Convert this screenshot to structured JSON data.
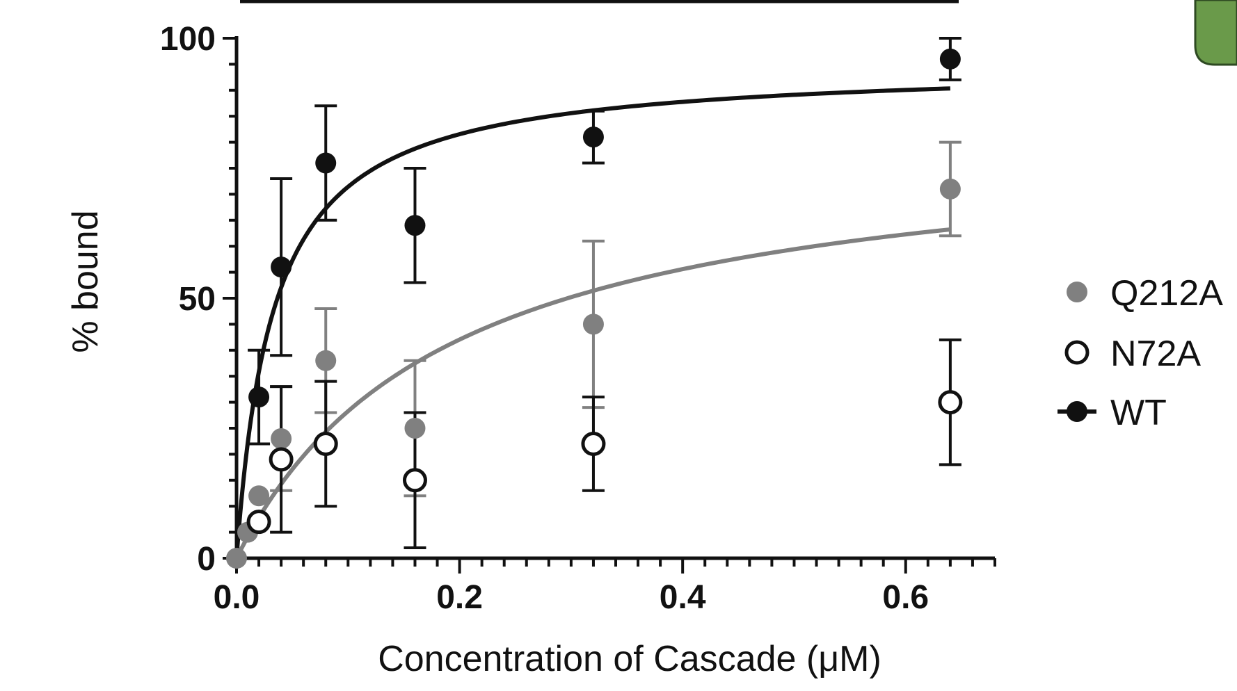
{
  "chart_data": {
    "type": "scatter",
    "title": "",
    "xlabel": "Concentration of Cascade (μM)",
    "ylabel": "% bound",
    "xlim": [
      0,
      0.68
    ],
    "ylim": [
      0,
      100
    ],
    "x_ticks": [
      0.0,
      0.2,
      0.4,
      0.6
    ],
    "x_tick_labels": [
      "0.0",
      "0.2",
      "0.4",
      "0.6"
    ],
    "y_ticks": [
      0,
      50,
      100
    ],
    "y_tick_labels": [
      "0",
      "50",
      "100"
    ],
    "grid": false,
    "legend_position": "right",
    "series": [
      {
        "name": "Q212A",
        "color": "#808080",
        "marker": "filled-circle",
        "x": [
          0.0,
          0.01,
          0.02,
          0.04,
          0.08,
          0.16,
          0.32,
          0.64
        ],
        "y": [
          0,
          5,
          12,
          23,
          38,
          25,
          45,
          71
        ],
        "err_low": [
          0,
          0,
          0,
          10,
          10,
          13,
          16,
          9
        ],
        "err_high": [
          0,
          0,
          0,
          10,
          10,
          13,
          16,
          9
        ],
        "fit": {
          "bmax": 82,
          "kd": 0.19,
          "color": "#808080"
        }
      },
      {
        "name": "N72A",
        "color": "#111111",
        "marker": "open-circle",
        "x": [
          0.02,
          0.04,
          0.08,
          0.16,
          0.32,
          0.64
        ],
        "y": [
          7,
          19,
          22,
          15,
          22,
          30
        ],
        "err_low": [
          0,
          14,
          12,
          13,
          9,
          12
        ],
        "err_high": [
          0,
          14,
          12,
          13,
          9,
          12
        ]
      },
      {
        "name": "WT",
        "color": "#111111",
        "marker": "filled-circle",
        "x": [
          0.02,
          0.04,
          0.08,
          0.16,
          0.32,
          0.64
        ],
        "y": [
          31,
          56,
          76,
          64,
          81,
          96
        ],
        "err_low": [
          9,
          17,
          11,
          11,
          5,
          4
        ],
        "err_high": [
          9,
          17,
          11,
          11,
          5,
          4
        ],
        "fit": {
          "bmax": 95,
          "kd": 0.033,
          "color": "#111111"
        }
      }
    ]
  }
}
